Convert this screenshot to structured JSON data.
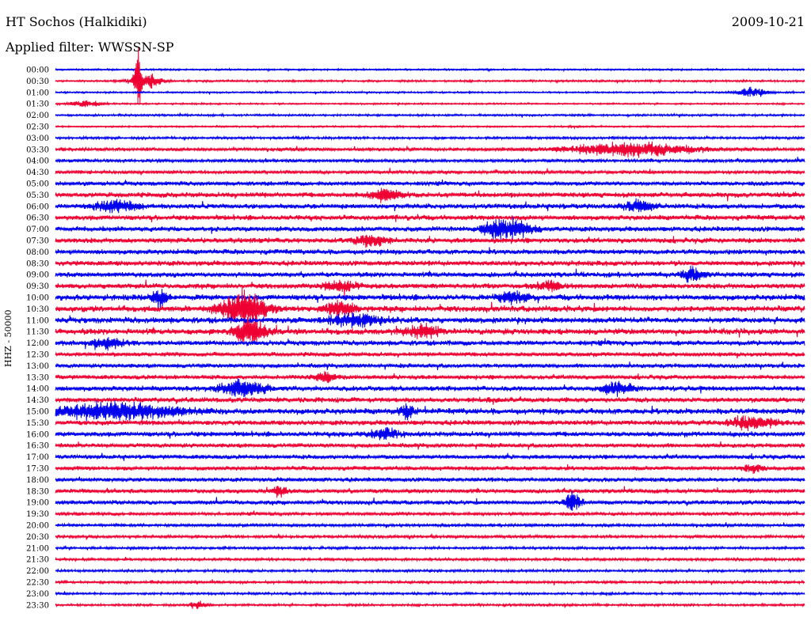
{
  "header": {
    "station": "HT Sochos (Halkidiki)",
    "date": "2009-10-21",
    "filter": "Applied filter: WWSSN-SP"
  },
  "chart_data": {
    "type": "line",
    "title": "HT Sochos (Halkidiki)",
    "subtitle": "Applied filter: WWSSN-SP",
    "ylabel": "HHZ - 50000",
    "xlabel": "",
    "colors": [
      "#0000ee",
      "#ee0033"
    ],
    "trace_labels": [
      "00:00",
      "00:30",
      "01:00",
      "01:30",
      "02:00",
      "02:30",
      "03:00",
      "03:30",
      "04:00",
      "04:30",
      "05:00",
      "05:30",
      "06:00",
      "06:30",
      "07:00",
      "07:30",
      "08:00",
      "08:30",
      "09:00",
      "09:30",
      "10:00",
      "10:30",
      "11:00",
      "11:30",
      "12:00",
      "12:30",
      "13:00",
      "13:30",
      "14:00",
      "14:30",
      "15:00",
      "15:30",
      "16:00",
      "16:30",
      "17:00",
      "17:30",
      "18:00",
      "18:30",
      "19:00",
      "19:30",
      "20:00",
      "20:30",
      "21:00",
      "21:30",
      "22:00",
      "22:30",
      "23:00",
      "23:30"
    ],
    "trace_amplitude": [
      1,
      1.2,
      1,
      1,
      1.2,
      1,
      1.5,
      2,
      2,
      2,
      2.5,
      3,
      3,
      3,
      3,
      3,
      3,
      3,
      3,
      3,
      3.5,
      3.5,
      3.5,
      3.5,
      3,
      2.5,
      2.5,
      2.5,
      3,
      3,
      3.5,
      3,
      3,
      2.5,
      2.5,
      2.5,
      2.5,
      2.5,
      2.5,
      2,
      1.8,
      1.8,
      1.6,
      1.6,
      1.5,
      1.5,
      1.4,
      1.4
    ],
    "events": [
      {
        "trace": "00:30",
        "t": 0.11,
        "amp": 45,
        "width": 0.004
      },
      {
        "trace": "00:30",
        "t": 0.12,
        "amp": 12,
        "width": 0.02
      },
      {
        "trace": "01:30",
        "t": 0.04,
        "amp": 5,
        "width": 0.02
      },
      {
        "trace": "01:00",
        "t": 0.93,
        "amp": 7,
        "width": 0.02
      },
      {
        "trace": "03:30",
        "t": 0.77,
        "amp": 10,
        "width": 0.08
      },
      {
        "trace": "06:00",
        "t": 0.08,
        "amp": 8,
        "width": 0.03
      },
      {
        "trace": "06:00",
        "t": 0.78,
        "amp": 8,
        "width": 0.02
      },
      {
        "trace": "05:30",
        "t": 0.44,
        "amp": 8,
        "width": 0.02
      },
      {
        "trace": "07:00",
        "t": 0.59,
        "amp": 13,
        "width": 0.02
      },
      {
        "trace": "07:00",
        "t": 0.62,
        "amp": 10,
        "width": 0.02
      },
      {
        "trace": "07:30",
        "t": 0.42,
        "amp": 9,
        "width": 0.02
      },
      {
        "trace": "09:30",
        "t": 0.38,
        "amp": 8,
        "width": 0.02
      },
      {
        "trace": "09:30",
        "t": 0.66,
        "amp": 6,
        "width": 0.02
      },
      {
        "trace": "09:00",
        "t": 0.85,
        "amp": 10,
        "width": 0.015
      },
      {
        "trace": "10:00",
        "t": 0.14,
        "amp": 15,
        "width": 0.01
      },
      {
        "trace": "10:00",
        "t": 0.61,
        "amp": 9,
        "width": 0.02
      },
      {
        "trace": "10:30",
        "t": 0.25,
        "amp": 25,
        "width": 0.03
      },
      {
        "trace": "10:30",
        "t": 0.38,
        "amp": 10,
        "width": 0.02
      },
      {
        "trace": "11:00",
        "t": 0.4,
        "amp": 8,
        "width": 0.04
      },
      {
        "trace": "11:30",
        "t": 0.26,
        "amp": 18,
        "width": 0.02
      },
      {
        "trace": "11:30",
        "t": 0.49,
        "amp": 10,
        "width": 0.02
      },
      {
        "trace": "12:00",
        "t": 0.07,
        "amp": 8,
        "width": 0.02
      },
      {
        "trace": "13:30",
        "t": 0.36,
        "amp": 8,
        "width": 0.015
      },
      {
        "trace": "14:00",
        "t": 0.25,
        "amp": 12,
        "width": 0.03
      },
      {
        "trace": "14:00",
        "t": 0.75,
        "amp": 9,
        "width": 0.02
      },
      {
        "trace": "15:00",
        "t": 0.08,
        "amp": 12,
        "width": 0.08
      },
      {
        "trace": "15:00",
        "t": 0.47,
        "amp": 9,
        "width": 0.01
      },
      {
        "trace": "15:30",
        "t": 0.93,
        "amp": 9,
        "width": 0.03
      },
      {
        "trace": "16:00",
        "t": 0.44,
        "amp": 8,
        "width": 0.02
      },
      {
        "trace": "17:30",
        "t": 0.93,
        "amp": 7,
        "width": 0.01
      },
      {
        "trace": "18:30",
        "t": 0.3,
        "amp": 8,
        "width": 0.01
      },
      {
        "trace": "19:00",
        "t": 0.69,
        "amp": 16,
        "width": 0.01
      },
      {
        "trace": "23:30",
        "t": 0.19,
        "amp": 6,
        "width": 0.01
      }
    ]
  }
}
